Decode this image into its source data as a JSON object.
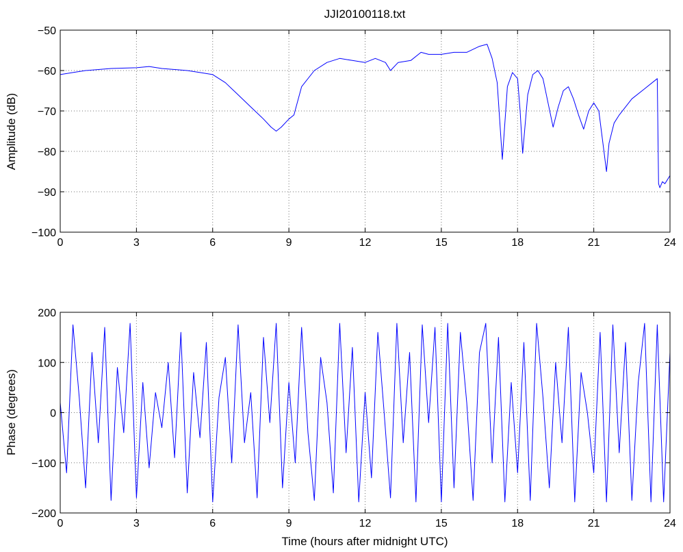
{
  "chart_data": [
    {
      "type": "line",
      "title": "JJI20100118.txt",
      "xlabel": "",
      "ylabel": "Amplitude (dB)",
      "xlim": [
        0,
        24
      ],
      "ylim": [
        -100,
        -50
      ],
      "xticks": [
        0,
        3,
        6,
        9,
        12,
        15,
        18,
        21,
        24
      ],
      "yticks": [
        -100,
        -90,
        -80,
        -70,
        -60,
        -50
      ],
      "grid": true,
      "series": [
        {
          "color": "#0000ff",
          "x": [
            0,
            0.5,
            1,
            2,
            3,
            3.5,
            4,
            5,
            5.5,
            6,
            6.5,
            7,
            7.5,
            8,
            8.3,
            8.5,
            8.7,
            9,
            9.2,
            9.5,
            10,
            10.5,
            11,
            11.5,
            12,
            12.4,
            12.8,
            13,
            13.3,
            13.8,
            14.2,
            14.5,
            15,
            15.5,
            16,
            16.5,
            16.8,
            17,
            17.2,
            17.4,
            17.6,
            17.8,
            18,
            18.1,
            18.2,
            18.4,
            18.6,
            18.8,
            19,
            19.2,
            19.4,
            19.6,
            19.8,
            20,
            20.2,
            20.4,
            20.6,
            20.8,
            21,
            21.2,
            21.4,
            21.5,
            21.6,
            21.8,
            22,
            22.5,
            23,
            23.5,
            23.55,
            23.6,
            23.7,
            23.8,
            24
          ],
          "y": [
            -61,
            -60.5,
            -60,
            -59.5,
            -59.3,
            -59,
            -59.5,
            -60,
            -60.5,
            -61,
            -63,
            -66,
            -69,
            -72,
            -74,
            -75,
            -74,
            -72,
            -71,
            -64,
            -60,
            -58,
            -57,
            -57.5,
            -58,
            -57,
            -58,
            -60,
            -58,
            -57.5,
            -55.5,
            -56,
            -56,
            -55.5,
            -55.5,
            -54,
            -53.5,
            -57,
            -63,
            -82,
            -64,
            -60.5,
            -62,
            -70,
            -80.5,
            -66,
            -61,
            -60,
            -62,
            -68,
            -74,
            -69,
            -65,
            -64,
            -67,
            -71,
            -74.5,
            -70,
            -68,
            -70,
            -80,
            -85,
            -78,
            -73,
            -71,
            -67,
            -64.5,
            -62,
            -88,
            -89,
            -87.5,
            -88,
            -86
          ]
        }
      ]
    },
    {
      "type": "line",
      "title": "",
      "xlabel": "Time (hours after midnight UTC)",
      "ylabel": "Phase (degrees)",
      "xlim": [
        0,
        24
      ],
      "ylim": [
        -200,
        200
      ],
      "xticks": [
        0,
        3,
        6,
        9,
        12,
        15,
        18,
        21,
        24
      ],
      "yticks": [
        -200,
        -100,
        0,
        100,
        200
      ],
      "grid": true,
      "series": [
        {
          "color": "#0000ff",
          "x": [
            0,
            0.25,
            0.5,
            0.75,
            1,
            1.25,
            1.5,
            1.75,
            2,
            2.25,
            2.5,
            2.75,
            3,
            3.25,
            3.5,
            3.75,
            4,
            4.25,
            4.5,
            4.75,
            5,
            5.25,
            5.5,
            5.75,
            6,
            6.25,
            6.5,
            6.75,
            7,
            7.25,
            7.5,
            7.75,
            8,
            8.25,
            8.5,
            8.75,
            9,
            9.25,
            9.5,
            9.75,
            10,
            10.25,
            10.5,
            10.75,
            11,
            11.25,
            11.5,
            11.75,
            12,
            12.25,
            12.5,
            12.75,
            13,
            13.25,
            13.5,
            13.75,
            14,
            14.25,
            14.5,
            14.75,
            15,
            15.25,
            15.5,
            15.75,
            16,
            16.25,
            16.5,
            16.75,
            17,
            17.25,
            17.5,
            17.75,
            18,
            18.25,
            18.5,
            18.75,
            19,
            19.25,
            19.5,
            19.75,
            20,
            20.25,
            20.5,
            20.75,
            21,
            21.25,
            21.5,
            21.75,
            22,
            22.25,
            22.5,
            22.75,
            23,
            23.25,
            23.5,
            23.75,
            24
          ],
          "y": [
            20,
            -120,
            175,
            30,
            -150,
            120,
            -60,
            170,
            -175,
            90,
            -40,
            178,
            -170,
            60,
            -110,
            40,
            -30,
            100,
            -90,
            160,
            -160,
            80,
            -50,
            140,
            -178,
            30,
            110,
            -100,
            175,
            -60,
            40,
            -170,
            150,
            -20,
            178,
            -150,
            60,
            -100,
            170,
            -40,
            -175,
            110,
            20,
            -160,
            178,
            -80,
            130,
            -178,
            40,
            -130,
            160,
            0,
            -170,
            178,
            -60,
            120,
            -178,
            175,
            -20,
            170,
            -178,
            178,
            -150,
            160,
            20,
            -175,
            120,
            178,
            -100,
            150,
            -178,
            60,
            -120,
            140,
            -175,
            178,
            30,
            -150,
            100,
            -60,
            170,
            -178,
            80,
            0,
            -120,
            160,
            -178,
            175,
            -80,
            140,
            -175,
            60,
            178,
            -178,
            175,
            -178,
            120
          ]
        }
      ]
    }
  ]
}
